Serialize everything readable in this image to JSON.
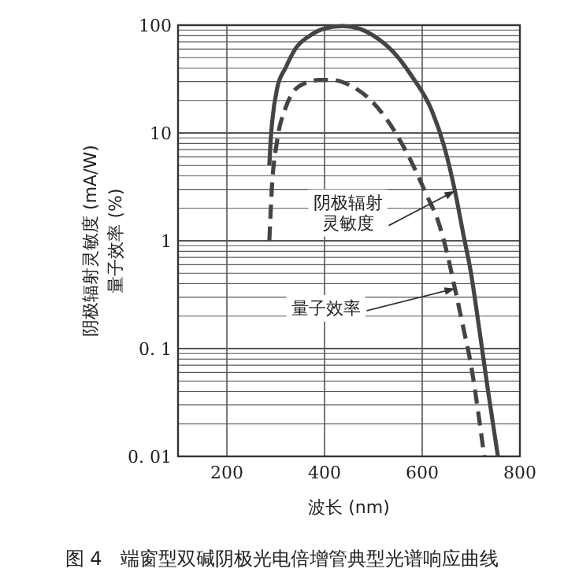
{
  "chart_data": {
    "type": "line",
    "xlabel": "波长 (nm)",
    "ylabel": "阴极辐射灵敏度 (mA/W)\n量子效率 (%)",
    "log": "y",
    "grid": true,
    "xlim": [
      100,
      800
    ],
    "xticks": [
      200,
      400,
      600,
      800
    ],
    "ylim": [
      0.01,
      100
    ],
    "yticks": [
      {
        "value": 0.01,
        "label": "0. 01"
      },
      {
        "value": 0.1,
        "label": "0. 1"
      },
      1,
      10,
      100
    ],
    "series": [
      {
        "color": "#444444",
        "line_style": "solid",
        "x": [
          287,
          290,
          293,
          303,
          320,
          340,
          370,
          400,
          437,
          470,
          500,
          543,
          580,
          620,
          645,
          667,
          685,
          700,
          710,
          720,
          735,
          755
        ],
        "values": [
          5,
          9,
          13,
          26,
          40,
          60,
          80,
          93,
          98,
          93,
          80,
          55,
          33,
          16,
          7.5,
          2.9,
          1.1,
          0.5,
          0.25,
          0.12,
          0.04,
          0.01
        ]
      },
      {
        "color": "#444444",
        "line_style": "dashed",
        "x": [
          287,
          292,
          303,
          320,
          333,
          360,
          390,
          417,
          450,
          500,
          540,
          577,
          610,
          633,
          650,
          667,
          685,
          700,
          715,
          727
        ],
        "values": [
          1,
          3,
          8.5,
          17,
          23,
          29,
          31,
          31,
          28,
          19,
          11,
          5.5,
          2.6,
          1.5,
          0.8,
          0.36,
          0.15,
          0.07,
          0.025,
          0.01
        ]
      }
    ],
    "annotations": [
      {
        "text": "阴极辐射灵敏度",
        "x": 667,
        "y": 2.9
      },
      {
        "text": "量子效率",
        "x": 667,
        "y": 0.36
      },
      "图 4　端窗型双碱阴极光电倍增管典型光谱响应曲线"
    ]
  }
}
